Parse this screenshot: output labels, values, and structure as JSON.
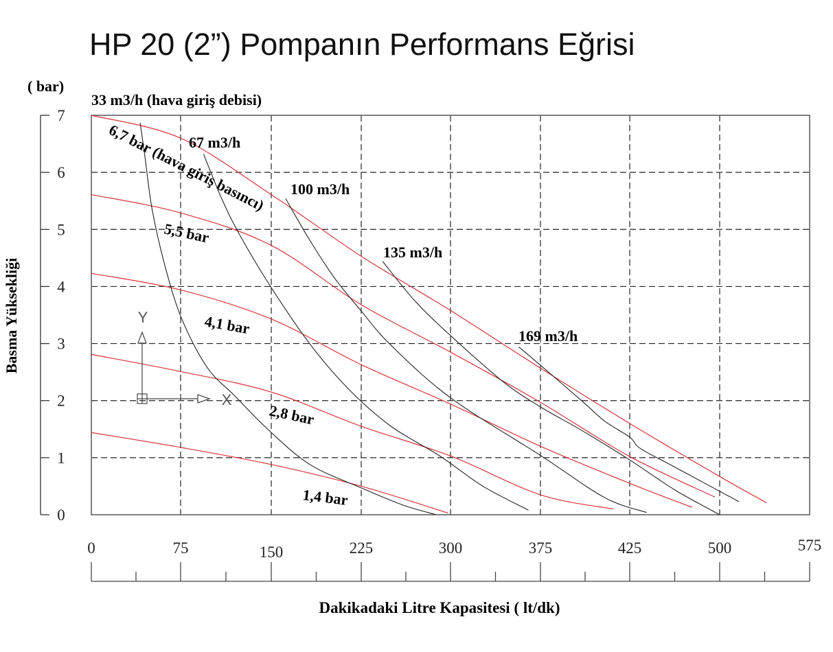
{
  "chart_data": {
    "type": "line",
    "title": "HP 20 (2”) Pompanın Performans Eğrisi",
    "xlabel": "Dakikadaki Litre Kapasitesi ( lt/dk)",
    "ylabel": "Basma Yüksekliği",
    "y_unit_label": "( bar)",
    "air_flow_header": "33 m3/h (hava giriş debisi)",
    "x_ticks": [
      0,
      75,
      150,
      225,
      300,
      375,
      425,
      500,
      575
    ],
    "y_ticks": [
      0,
      1,
      2,
      3,
      4,
      5,
      6,
      7
    ],
    "xlim": [
      0,
      575
    ],
    "ylim": [
      0,
      7
    ],
    "grid": true,
    "colors": {
      "pressure_curves": "#d8343a",
      "airflow_curves": "#222222",
      "grid": "#000000"
    },
    "pressure_series": [
      {
        "name": "6,7 bar (hava giriş basıncı)",
        "points": [
          [
            0,
            7.0
          ],
          [
            75,
            6.6
          ],
          [
            150,
            5.61
          ],
          [
            225,
            4.53
          ],
          [
            300,
            3.58
          ],
          [
            375,
            2.57
          ],
          [
            425,
            1.6
          ],
          [
            500,
            0.67
          ],
          [
            539,
            0.21
          ]
        ]
      },
      {
        "name": "5,5 bar",
        "points": [
          [
            0,
            5.61
          ],
          [
            75,
            5.29
          ],
          [
            150,
            4.72
          ],
          [
            225,
            3.68
          ],
          [
            300,
            2.85
          ],
          [
            375,
            1.97
          ],
          [
            425,
            1.02
          ],
          [
            496,
            0.31
          ]
        ]
      },
      {
        "name": "4,1 bar",
        "points": [
          [
            0,
            4.23
          ],
          [
            75,
            3.94
          ],
          [
            150,
            3.43
          ],
          [
            225,
            2.63
          ],
          [
            300,
            1.94
          ],
          [
            375,
            1.2
          ],
          [
            425,
            0.55
          ],
          [
            477,
            0.13
          ]
        ]
      },
      {
        "name": "2,8 bar",
        "points": [
          [
            0,
            2.81
          ],
          [
            75,
            2.51
          ],
          [
            150,
            2.15
          ],
          [
            225,
            1.55
          ],
          [
            300,
            1.03
          ],
          [
            375,
            0.35
          ],
          [
            416,
            0.1
          ]
        ]
      },
      {
        "name": "1,4 bar",
        "points": [
          [
            0,
            1.44
          ],
          [
            75,
            1.18
          ],
          [
            150,
            0.88
          ],
          [
            225,
            0.5
          ],
          [
            298,
            0.03
          ]
        ]
      }
    ],
    "airflow_series": [
      {
        "name": "33 m3/h",
        "points": [
          [
            41,
            6.87
          ],
          [
            45,
            6.28
          ],
          [
            51,
            5.36
          ],
          [
            62,
            4.35
          ],
          [
            76,
            3.43
          ],
          [
            97,
            2.58
          ],
          [
            119,
            2.1
          ],
          [
            150,
            1.44
          ],
          [
            183,
            0.87
          ],
          [
            225,
            0.47
          ],
          [
            260,
            0.17
          ],
          [
            288,
            0.0
          ]
        ]
      },
      {
        "name": "67 m3/h",
        "points": [
          [
            94,
            6.32
          ],
          [
            109,
            5.54
          ],
          [
            124,
            4.9
          ],
          [
            150,
            3.98
          ],
          [
            183,
            2.97
          ],
          [
            215,
            2.19
          ],
          [
            250,
            1.55
          ],
          [
            291,
            1.03
          ],
          [
            327,
            0.5
          ],
          [
            365,
            0.08
          ]
        ]
      },
      {
        "name": "100 m3/h",
        "points": [
          [
            162,
            5.54
          ],
          [
            181,
            4.85
          ],
          [
            202,
            4.17
          ],
          [
            225,
            3.57
          ],
          [
            250,
            2.97
          ],
          [
            300,
            2.05
          ],
          [
            375,
            1.04
          ],
          [
            411,
            0.3
          ],
          [
            439,
            0.04
          ]
        ]
      },
      {
        "name": "135 m3/h",
        "points": [
          [
            243,
            4.44
          ],
          [
            270,
            3.75
          ],
          [
            300,
            3.14
          ],
          [
            344,
            2.33
          ],
          [
            375,
            1.89
          ],
          [
            398,
            1.48
          ],
          [
            425,
            0.96
          ],
          [
            463,
            0.43
          ],
          [
            500,
            0.0
          ]
        ]
      },
      {
        "name": "169 m3/h",
        "points": [
          [
            357,
            2.94
          ],
          [
            375,
            2.62
          ],
          [
            398,
            2.0
          ],
          [
            411,
            1.64
          ],
          [
            425,
            1.36
          ],
          [
            434,
            1.16
          ],
          [
            463,
            0.83
          ],
          [
            516,
            0.23
          ]
        ]
      }
    ],
    "axis_icon": {
      "y_letter": "Y",
      "x_letter": "X"
    }
  }
}
